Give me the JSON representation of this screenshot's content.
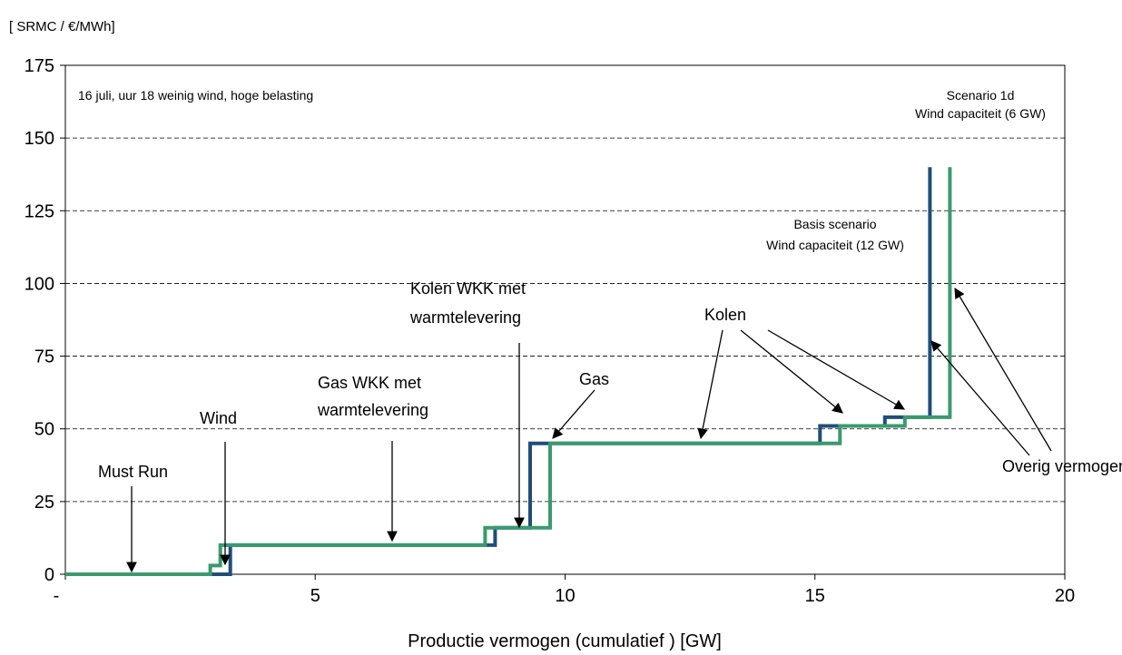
{
  "chart_data": {
    "type": "line",
    "title": "",
    "ylabel": "[ SRMC / €/MWh]",
    "xlabel": "Productie vermogen (cumulatief ) [GW]",
    "xlim": [
      0,
      20
    ],
    "ylim": [
      0,
      175
    ],
    "x_ticks": [
      {
        "value": 0,
        "label": "-"
      },
      {
        "value": 5,
        "label": "5"
      },
      {
        "value": 10,
        "label": "10"
      },
      {
        "value": 15,
        "label": "15"
      },
      {
        "value": 20,
        "label": "20"
      }
    ],
    "y_ticks": [
      0,
      25,
      50,
      75,
      100,
      125,
      150,
      175
    ],
    "grid": {
      "y_major": true,
      "style": "dashed"
    },
    "series": [
      {
        "name": "Scenario 1d Wind capaciteit (6 GW)",
        "color": "#1f4e79",
        "points": [
          [
            0,
            0
          ],
          [
            3.3,
            0
          ],
          [
            3.3,
            3
          ],
          [
            3.3,
            10
          ],
          [
            8.6,
            10
          ],
          [
            8.6,
            16
          ],
          [
            9.3,
            16
          ],
          [
            9.3,
            45
          ],
          [
            10.5,
            45
          ],
          [
            15.1,
            45
          ],
          [
            15.1,
            51
          ],
          [
            16.4,
            51
          ],
          [
            16.4,
            54
          ],
          [
            17.3,
            54
          ],
          [
            17.3,
            140
          ]
        ]
      },
      {
        "name": "Basis scenario Wind capaciteit (12 GW)",
        "color": "#3a9a6e",
        "points": [
          [
            0,
            0
          ],
          [
            2.9,
            0
          ],
          [
            2.9,
            3
          ],
          [
            3.1,
            3
          ],
          [
            3.1,
            10
          ],
          [
            8.4,
            10
          ],
          [
            8.4,
            16
          ],
          [
            9.7,
            16
          ],
          [
            9.7,
            45
          ],
          [
            15.5,
            45
          ],
          [
            15.5,
            51
          ],
          [
            16.8,
            51
          ],
          [
            16.8,
            54
          ],
          [
            17.7,
            54
          ],
          [
            17.7,
            140
          ]
        ]
      }
    ],
    "annotations": [
      {
        "id": "header",
        "text": "16 juli, uur 18   weinig wind, hoge belasting"
      },
      {
        "id": "scenario1d",
        "lines": [
          "Scenario 1d",
          "Wind capaciteit (6 GW)"
        ]
      },
      {
        "id": "basis",
        "lines": [
          "Basis scenario",
          "Wind capaciteit (12 GW)"
        ]
      },
      {
        "id": "mustrun",
        "lines": [
          "Must Run"
        ]
      },
      {
        "id": "wind",
        "lines": [
          "Wind"
        ]
      },
      {
        "id": "gaswkk",
        "lines": [
          "Gas WKK met",
          "warmtelevering"
        ]
      },
      {
        "id": "kolenwkk",
        "lines": [
          "Kolen  WKK met",
          "warmtelevering"
        ]
      },
      {
        "id": "gas",
        "lines": [
          "Gas"
        ]
      },
      {
        "id": "kolen",
        "lines": [
          "Kolen"
        ]
      },
      {
        "id": "overig",
        "lines": [
          "Overig vermogen"
        ]
      }
    ]
  }
}
